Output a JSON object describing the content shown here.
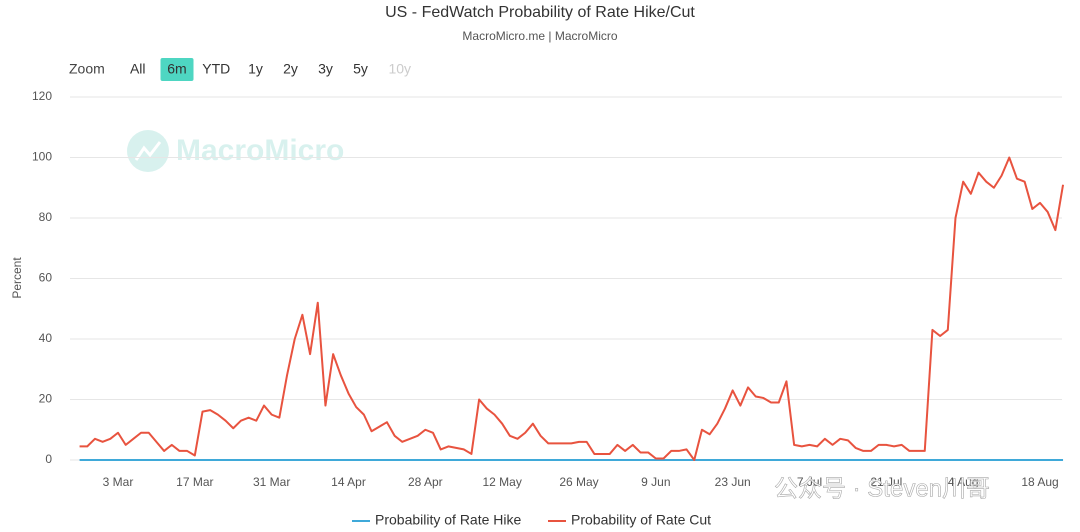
{
  "chart_data": {
    "type": "line",
    "title": "US - FedWatch Probability of Rate Hike/Cut",
    "subtitle": "MacroMicro.me | MacroMicro",
    "zoom_label": "Zoom",
    "zoom_buttons": [
      "All",
      "6m",
      "YTD",
      "1y",
      "2y",
      "3y",
      "5y",
      "10y"
    ],
    "zoom_selected": "6m",
    "watermark": "MacroMicro",
    "overlay_text": "公众号 · Steven川哥",
    "ylabel": "Percent",
    "ylim": [
      0,
      120
    ],
    "yticks": [
      0,
      20,
      40,
      60,
      80,
      100,
      120
    ],
    "grid": true,
    "categories": [
      null,
      null,
      null,
      null,
      null,
      "3 Mar",
      null,
      null,
      null,
      null,
      null,
      null,
      null,
      null,
      null,
      "17 Mar",
      null,
      null,
      null,
      null,
      null,
      null,
      null,
      null,
      null,
      "31 Mar",
      null,
      null,
      null,
      null,
      null,
      null,
      null,
      null,
      null,
      "14 Apr",
      null,
      null,
      null,
      null,
      null,
      null,
      null,
      null,
      null,
      "28 Apr",
      null,
      null,
      null,
      null,
      null,
      null,
      null,
      null,
      null,
      "12 May",
      null,
      null,
      null,
      null,
      null,
      null,
      null,
      null,
      null,
      "26 May",
      null,
      null,
      null,
      null,
      null,
      null,
      null,
      null,
      null,
      "9 Jun",
      null,
      null,
      null,
      null,
      null,
      null,
      null,
      null,
      null,
      "23 Jun",
      null,
      null,
      null,
      null,
      null,
      null,
      null,
      null,
      null,
      "7 Jul",
      null,
      null,
      null,
      null,
      null,
      null,
      null,
      null,
      null,
      "21 Jul",
      null,
      null,
      null,
      null,
      null,
      null,
      null,
      null,
      null,
      "4 Aug",
      null,
      null,
      null,
      null,
      null,
      null,
      null,
      null,
      null,
      "18 Aug",
      null,
      null,
      null
    ],
    "series": [
      {
        "name": "Probability of Rate Hike",
        "color": "#3fa9d9",
        "values": [
          0,
          0,
          0,
          0,
          0,
          0,
          0,
          0,
          0,
          0,
          0,
          0,
          0,
          0,
          0,
          0,
          0,
          0,
          0,
          0,
          0,
          0,
          0,
          0,
          0,
          0,
          0,
          0,
          0,
          0,
          0,
          0,
          0,
          0,
          0,
          0,
          0,
          0,
          0,
          0,
          0,
          0,
          0,
          0,
          0,
          0,
          0,
          0,
          0,
          0,
          0,
          0,
          0,
          0,
          0,
          0,
          0,
          0,
          0,
          0,
          0,
          0,
          0,
          0,
          0,
          0,
          0,
          0,
          0,
          0,
          0,
          0,
          0,
          0,
          0,
          0,
          0,
          0,
          0,
          0,
          0,
          0,
          0,
          0,
          0,
          0,
          0,
          0,
          0,
          0,
          0,
          0,
          0,
          0,
          0,
          0,
          0,
          0,
          0,
          0,
          0,
          0,
          0,
          0,
          0,
          0,
          0,
          0,
          0,
          0,
          0,
          0,
          0,
          0,
          0,
          0,
          0,
          0,
          0,
          0,
          0,
          0,
          0,
          0,
          0,
          0,
          0,
          0,
          0
        ]
      },
      {
        "name": "Probability of Rate Cut",
        "color": "#e8533f",
        "values": [
          4.5,
          4.5,
          7,
          6,
          7,
          9,
          5,
          7,
          9,
          9,
          6,
          3,
          5,
          3,
          3,
          1.5,
          16,
          16.5,
          15,
          13,
          10.5,
          13,
          14,
          13,
          18,
          15,
          14,
          28,
          40,
          48,
          35,
          52,
          18,
          35,
          28,
          22,
          17.5,
          15,
          9.5,
          11,
          12.5,
          8,
          6,
          7,
          8,
          10,
          9,
          3.5,
          4.5,
          4,
          3.5,
          2,
          20,
          17,
          15,
          12,
          8,
          7,
          9,
          12,
          8,
          5.5,
          5.5,
          5.5,
          5.5,
          6,
          6,
          2,
          2,
          2,
          5,
          3,
          5,
          2.5,
          2.5,
          0.5,
          0.5,
          3,
          3,
          3.5,
          0,
          10,
          8.5,
          12,
          17,
          23,
          18,
          24,
          21,
          20.5,
          19,
          19,
          26,
          5,
          4.5,
          5,
          4.5,
          7,
          5,
          7,
          6.5,
          4,
          3,
          3,
          5,
          5,
          4.5,
          5,
          3,
          3,
          3,
          43,
          41,
          43,
          80,
          92,
          88,
          95,
          92,
          90,
          94,
          100,
          93,
          92,
          83,
          85,
          82,
          76,
          91
        ]
      }
    ]
  }
}
